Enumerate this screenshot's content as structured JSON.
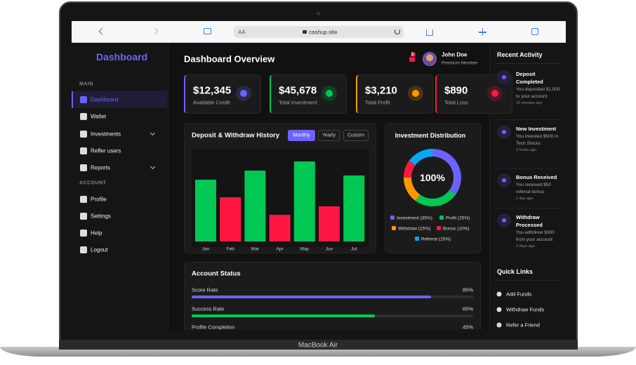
{
  "browser": {
    "text_size": "AA",
    "address": "cashup.site"
  },
  "sidebar": {
    "brand": "Dashboard",
    "sections": [
      {
        "heading": "MAIN",
        "items": [
          "Dashboard",
          "Wallet",
          "Investments",
          "Reffer users",
          "Reports"
        ]
      },
      {
        "heading": "ACCOUNT",
        "items": [
          "Profile",
          "Settings",
          "Help",
          "Logout"
        ]
      }
    ]
  },
  "header": {
    "title": "Dashboard Overview",
    "notification_count": 1,
    "user_name": "John Doe",
    "user_role": "Premium Member"
  },
  "stats": [
    {
      "value": "$12,345",
      "label": "Available Credit",
      "color": "#6c63ff"
    },
    {
      "value": "$45,678",
      "label": "Total Investment",
      "color": "#00c853"
    },
    {
      "value": "$3,210",
      "label": "Total Profit",
      "color": "#ff9800"
    },
    {
      "value": "$890",
      "label": "Total Loss",
      "color": "#ff1744"
    }
  ],
  "history": {
    "title": "Deposit & Withdraw History",
    "filters": [
      "Monthly",
      "Yearly",
      "Custom"
    ],
    "chart_data": {
      "type": "bar",
      "categories": [
        "Jan",
        "Feb",
        "Mar",
        "Apr",
        "May",
        "Jun",
        "Jul"
      ],
      "values": [
        88,
        63,
        101,
        38,
        114,
        50,
        94
      ],
      "colors": [
        "#00c853",
        "#ff1744",
        "#00c853",
        "#ff1744",
        "#00c853",
        "#ff1744",
        "#00c853"
      ]
    }
  },
  "distribution": {
    "title": "Investment Distribution",
    "chart_data": {
      "type": "pie",
      "center_label": "100%",
      "categories": [
        "Investment (35%)",
        "Profit (25%)",
        "Withdraw (15%)",
        "Bonus (10%)",
        "Referral (15%)"
      ],
      "values": [
        35,
        25,
        15,
        10,
        15
      ],
      "colors": [
        "#6c63ff",
        "#00c853",
        "#ff9800",
        "#ff1744",
        "#03a9f4"
      ]
    }
  },
  "account_status": {
    "title": "Account Status",
    "metrics": [
      {
        "label": "Score Rate",
        "value": 85,
        "value_label": "85%",
        "color": "#6c63ff"
      },
      {
        "label": "Success Rate",
        "value": 65,
        "value_label": "65%",
        "color": "#00c853"
      },
      {
        "label": "Profile Completion",
        "value": 45,
        "value_label": "45%",
        "color": "#ff9800"
      }
    ]
  },
  "recent_activity": {
    "title": "Recent Activity",
    "items": [
      {
        "title": "Deposit Completed",
        "text": "You deposited $1,000 to your account",
        "time": "10 minutes ago"
      },
      {
        "title": "New Investment",
        "text": "You invested $500 in Tech Stocks",
        "time": "2 hours ago"
      },
      {
        "title": "Bonus Received",
        "text": "You received $50 referral bonus",
        "time": "1 day ago"
      },
      {
        "title": "Withdraw Processed",
        "text": "You withdrew $300 from your account",
        "time": "2 days ago"
      }
    ]
  },
  "quick_links": {
    "title": "Quick Links",
    "items": [
      "Add Funds",
      "Withdraw Funds",
      "Refer a Friend"
    ]
  },
  "device": "MacBook Air"
}
